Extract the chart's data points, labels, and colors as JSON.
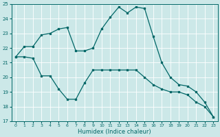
{
  "xlabel": "Humidex (Indice chaleur)",
  "ylabel": "",
  "bg_color": "#cce8e8",
  "grid_color": "#ffffff",
  "line_color": "#006666",
  "xlim": [
    -0.5,
    23.5
  ],
  "ylim": [
    17,
    25
  ],
  "yticks": [
    17,
    18,
    19,
    20,
    21,
    22,
    23,
    24,
    25
  ],
  "xticks": [
    0,
    1,
    2,
    3,
    4,
    5,
    6,
    7,
    8,
    9,
    10,
    11,
    12,
    13,
    14,
    15,
    16,
    17,
    18,
    19,
    20,
    21,
    22,
    23
  ],
  "line1_x": [
    0,
    1,
    2,
    3,
    4,
    5,
    6,
    7,
    8,
    9,
    10,
    11,
    12,
    13,
    14,
    15,
    16,
    17,
    18,
    19,
    20,
    21,
    22,
    23
  ],
  "line1_y": [
    21.4,
    22.1,
    22.1,
    22.9,
    23.0,
    23.3,
    23.4,
    21.8,
    21.8,
    22.0,
    23.3,
    24.1,
    24.8,
    24.4,
    24.8,
    24.7,
    22.8,
    21.0,
    20.0,
    19.5,
    19.4,
    19.0,
    18.3,
    17.3
  ],
  "line2_x": [
    0,
    1,
    2,
    3,
    4,
    5,
    6,
    7,
    8,
    9,
    10,
    11,
    12,
    13,
    14,
    15,
    16,
    17,
    18,
    19,
    20,
    21,
    22,
    23
  ],
  "line2_y": [
    21.4,
    21.4,
    21.3,
    20.1,
    20.1,
    19.2,
    18.5,
    18.5,
    19.6,
    20.5,
    20.5,
    20.5,
    20.5,
    20.5,
    20.5,
    20.0,
    19.5,
    19.2,
    19.0,
    19.0,
    18.8,
    18.3,
    18.0,
    17.3
  ],
  "figsize": [
    3.2,
    2.0
  ],
  "dpi": 100
}
